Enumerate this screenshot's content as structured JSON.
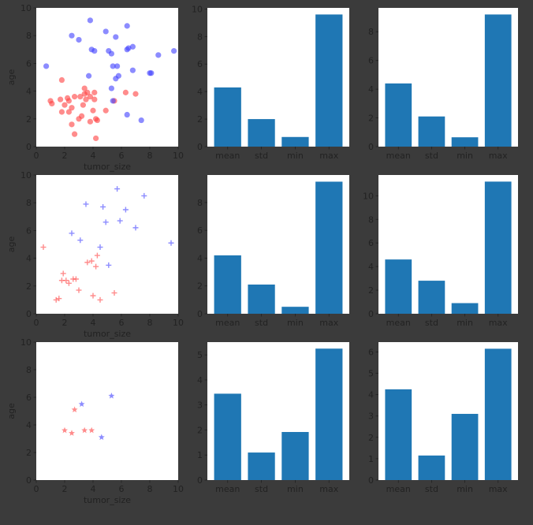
{
  "colors": {
    "background": "#3b3b3b",
    "axes_bg": "#ffffff",
    "tick_text": "#222222",
    "red": "#ff4040",
    "blue": "#4040ff",
    "bar": "#1f77b4"
  },
  "chart_data": [
    {
      "type": "scatter",
      "marker": "circle",
      "xlabel": "tumor_size",
      "ylabel": "age",
      "xlim": [
        0,
        10
      ],
      "ylim": [
        0,
        10
      ],
      "xticks": [
        "0",
        "2",
        "4",
        "6",
        "8",
        "10"
      ],
      "yticks": [
        "0",
        "2",
        "4",
        "6",
        "8",
        "10"
      ],
      "series": [
        {
          "color": "red",
          "points": [
            [
              1.1,
              3.1
            ],
            [
              1.0,
              3.3
            ],
            [
              1.8,
              2.5
            ],
            [
              1.7,
              3.4
            ],
            [
              2.0,
              3.0
            ],
            [
              2.2,
              3.5
            ],
            [
              2.3,
              3.3
            ],
            [
              2.3,
              2.5
            ],
            [
              2.5,
              2.8
            ],
            [
              2.5,
              1.6
            ],
            [
              2.7,
              0.9
            ],
            [
              2.7,
              3.6
            ],
            [
              3.0,
              2.0
            ],
            [
              3.2,
              2.2
            ],
            [
              3.3,
              3.0
            ],
            [
              3.4,
              3.8
            ],
            [
              3.4,
              4.2
            ],
            [
              3.5,
              3.4
            ],
            [
              3.6,
              3.9
            ],
            [
              3.8,
              3.6
            ],
            [
              3.8,
              1.8
            ],
            [
              4.0,
              2.6
            ],
            [
              4.1,
              3.4
            ],
            [
              4.1,
              3.9
            ],
            [
              4.2,
              2.0
            ],
            [
              4.2,
              0.6
            ],
            [
              4.3,
              1.9
            ],
            [
              4.9,
              2.6
            ],
            [
              5.5,
              3.3
            ],
            [
              6.3,
              3.9
            ],
            [
              7.0,
              3.8
            ],
            [
              1.8,
              4.8
            ],
            [
              3.1,
              3.6
            ]
          ]
        },
        {
          "color": "blue",
          "points": [
            [
              0.7,
              5.8
            ],
            [
              2.5,
              8.0
            ],
            [
              3.0,
              7.7
            ],
            [
              3.8,
              9.1
            ],
            [
              3.9,
              7.0
            ],
            [
              4.1,
              6.9
            ],
            [
              4.9,
              8.3
            ],
            [
              5.1,
              6.9
            ],
            [
              5.3,
              6.7
            ],
            [
              5.4,
              5.8
            ],
            [
              5.6,
              7.9
            ],
            [
              5.6,
              4.9
            ],
            [
              5.7,
              5.8
            ],
            [
              5.8,
              5.1
            ],
            [
              6.4,
              8.7
            ],
            [
              6.4,
              7.0
            ],
            [
              6.5,
              7.1
            ],
            [
              6.8,
              7.2
            ],
            [
              6.8,
              5.5
            ],
            [
              7.4,
              1.9
            ],
            [
              8.0,
              5.3
            ],
            [
              8.1,
              5.3
            ],
            [
              8.6,
              6.6
            ],
            [
              9.7,
              6.9
            ],
            [
              5.3,
              4.2
            ],
            [
              5.4,
              3.3
            ],
            [
              6.4,
              2.3
            ],
            [
              3.7,
              5.1
            ]
          ]
        }
      ]
    },
    {
      "type": "bar",
      "categories": [
        "mean",
        "std",
        "min",
        "max"
      ],
      "values": [
        4.3,
        2.0,
        0.7,
        9.6
      ],
      "ylim": [
        0,
        10.08
      ],
      "yticks": [
        0,
        2,
        4,
        6,
        8,
        10
      ]
    },
    {
      "type": "bar",
      "categories": [
        "mean",
        "std",
        "min",
        "max"
      ],
      "values": [
        4.4,
        2.1,
        0.65,
        9.2
      ],
      "ylim": [
        0,
        9.66
      ],
      "yticks": [
        0,
        2,
        4,
        6,
        8
      ]
    },
    {
      "type": "scatter",
      "marker": "plus",
      "xlabel": "tumor_size",
      "ylabel": "age",
      "xlim": [
        0,
        10
      ],
      "ylim": [
        0,
        10
      ],
      "xticks": [
        "0",
        "2",
        "4",
        "6",
        "8",
        "10"
      ],
      "yticks": [
        "0",
        "2",
        "4",
        "6",
        "8",
        "10"
      ],
      "series": [
        {
          "color": "red",
          "points": [
            [
              0.5,
              4.8
            ],
            [
              1.4,
              1.0
            ],
            [
              1.6,
              1.1
            ],
            [
              1.8,
              2.4
            ],
            [
              1.9,
              2.9
            ],
            [
              2.1,
              2.4
            ],
            [
              2.3,
              2.2
            ],
            [
              2.6,
              2.5
            ],
            [
              2.8,
              2.5
            ],
            [
              3.0,
              1.7
            ],
            [
              3.6,
              3.7
            ],
            [
              3.9,
              3.8
            ],
            [
              4.2,
              3.4
            ],
            [
              4.0,
              1.3
            ],
            [
              4.3,
              4.2
            ],
            [
              4.5,
              1.0
            ],
            [
              5.5,
              1.5
            ]
          ]
        },
        {
          "color": "blue",
          "points": [
            [
              2.5,
              5.8
            ],
            [
              3.1,
              5.3
            ],
            [
              3.5,
              7.9
            ],
            [
              4.5,
              4.8
            ],
            [
              4.7,
              7.7
            ],
            [
              4.9,
              6.6
            ],
            [
              5.1,
              3.5
            ],
            [
              5.7,
              9.0
            ],
            [
              5.9,
              6.7
            ],
            [
              6.3,
              7.5
            ],
            [
              7.0,
              6.2
            ],
            [
              7.6,
              8.5
            ],
            [
              9.5,
              5.1
            ]
          ]
        }
      ]
    },
    {
      "type": "bar",
      "categories": [
        "mean",
        "std",
        "min",
        "max"
      ],
      "values": [
        4.2,
        2.1,
        0.5,
        9.5
      ],
      "ylim": [
        0,
        9.98
      ],
      "yticks": [
        0,
        2,
        4,
        6,
        8
      ]
    },
    {
      "type": "bar",
      "categories": [
        "mean",
        "std",
        "min",
        "max"
      ],
      "values": [
        4.6,
        2.8,
        0.9,
        11.2
      ],
      "ylim": [
        0,
        11.76
      ],
      "yticks": [
        0,
        2,
        4,
        6,
        8,
        10
      ]
    },
    {
      "type": "scatter",
      "marker": "star",
      "xlabel": "tumor_size",
      "ylabel": "age",
      "xlim": [
        0,
        10
      ],
      "ylim": [
        0,
        10
      ],
      "xticks": [
        "0",
        "2",
        "4",
        "6",
        "8",
        "10"
      ],
      "yticks": [
        "0",
        "2",
        "4",
        "6",
        "8",
        "10"
      ],
      "series": [
        {
          "color": "red",
          "points": [
            [
              2.0,
              3.6
            ],
            [
              2.5,
              3.4
            ],
            [
              2.7,
              5.1
            ],
            [
              3.4,
              3.6
            ],
            [
              3.9,
              3.6
            ]
          ]
        },
        {
          "color": "blue",
          "points": [
            [
              3.2,
              5.5
            ],
            [
              4.6,
              3.1
            ],
            [
              5.3,
              6.1
            ]
          ]
        }
      ]
    },
    {
      "type": "bar",
      "categories": [
        "mean",
        "std",
        "min",
        "max"
      ],
      "values": [
        3.45,
        1.1,
        1.92,
        5.25
      ],
      "ylim": [
        0,
        5.51
      ],
      "yticks": [
        0,
        1,
        2,
        3,
        4,
        5
      ]
    },
    {
      "type": "bar",
      "categories": [
        "mean",
        "std",
        "min",
        "max"
      ],
      "values": [
        4.25,
        1.15,
        3.1,
        6.15
      ],
      "ylim": [
        0,
        6.46
      ],
      "yticks": [
        0,
        1,
        2,
        3,
        4,
        5,
        6
      ]
    }
  ]
}
